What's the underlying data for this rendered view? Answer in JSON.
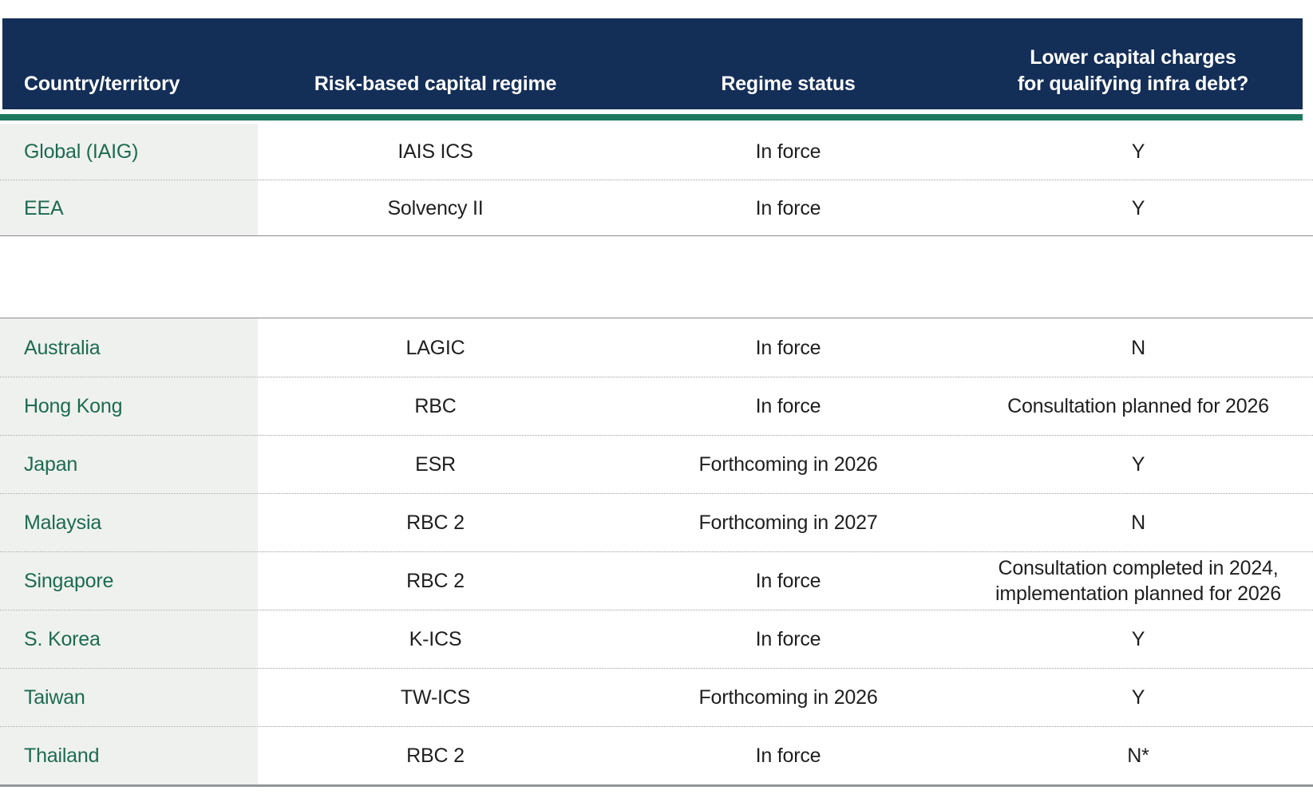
{
  "header": {
    "columns": [
      "Country/territory",
      "Risk-based capital regime",
      "Regime status",
      "Lower capital charges\nfor qualifying infra debt?"
    ]
  },
  "sections": [
    {
      "name": "global-section",
      "rows": [
        {
          "country": "Global (IAIG)",
          "regime": "IAIS ICS",
          "status": "In force",
          "infra": "Y"
        },
        {
          "country": "EEA",
          "regime": "Solvency II",
          "status": "In force",
          "infra": "Y"
        }
      ]
    },
    {
      "name": "apac-section",
      "rows": [
        {
          "country": "Australia",
          "regime": "LAGIC",
          "status": "In force",
          "infra": "N"
        },
        {
          "country": "Hong Kong",
          "regime": "RBC",
          "status": "In force",
          "infra": "Consultation planned for 2026"
        },
        {
          "country": "Japan",
          "regime": "ESR",
          "status": "Forthcoming in 2026",
          "infra": "Y"
        },
        {
          "country": "Malaysia",
          "regime": "RBC 2",
          "status": "Forthcoming in 2027",
          "infra": "N"
        },
        {
          "country": "Singapore",
          "regime": "RBC 2",
          "status": "In force",
          "infra": "Consultation completed in 2024,\nimplementation planned for 2026"
        },
        {
          "country": "S. Korea",
          "regime": "K-ICS",
          "status": "In force",
          "infra": "Y"
        },
        {
          "country": "Taiwan",
          "regime": "TW-ICS",
          "status": "Forthcoming in 2026",
          "infra": "Y"
        },
        {
          "country": "Thailand",
          "regime": "RBC 2",
          "status": "In force",
          "infra": "N*"
        }
      ]
    }
  ],
  "colors": {
    "header_bg": "#132e57",
    "accent_green": "#1e7a5f",
    "country_text_green": "#1c6b51",
    "first_column_bg": "#eff1ef",
    "body_text": "#1f1f1f",
    "header_text": "#ffffff"
  }
}
